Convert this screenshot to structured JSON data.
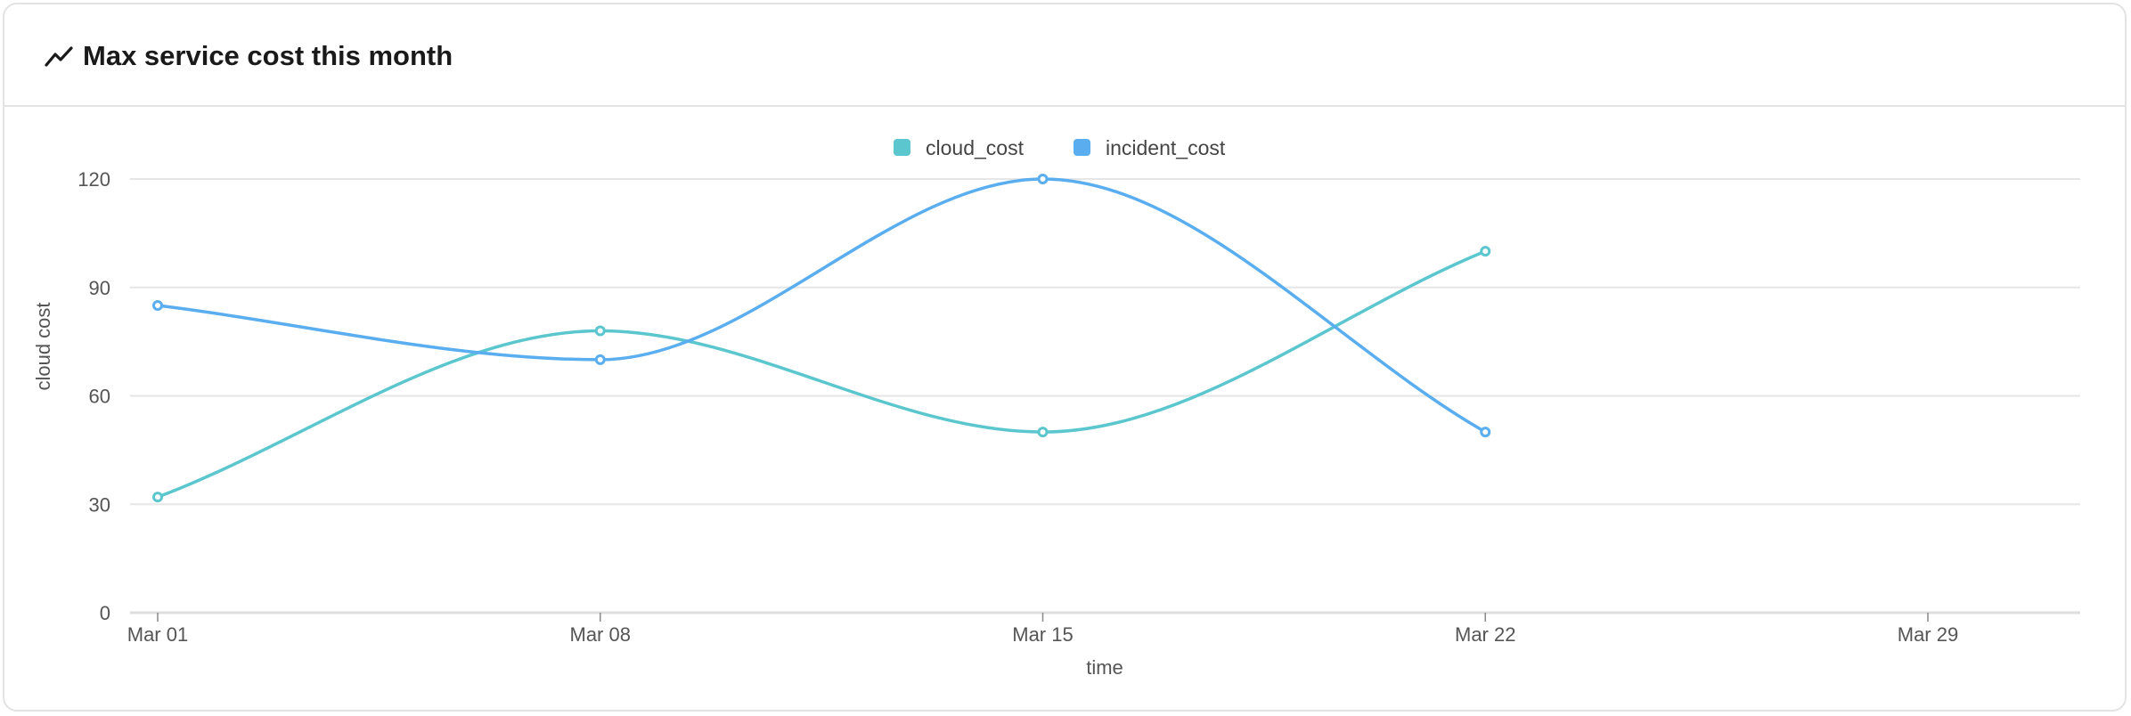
{
  "header": {
    "title": "Max service cost this month",
    "icon": "line-chart-icon"
  },
  "chart_data": {
    "type": "line",
    "title": "",
    "xlabel": "time",
    "ylabel": "cloud cost",
    "x": [
      "Mar 01",
      "Mar 08",
      "Mar 15",
      "Mar 22"
    ],
    "x_ticks": [
      "Mar 01",
      "Mar 08",
      "Mar 15",
      "Mar 22",
      "Mar 29"
    ],
    "y_ticks": [
      0,
      30,
      60,
      90,
      120
    ],
    "ylim": [
      0,
      120
    ],
    "grid": true,
    "legend_position": "top-center",
    "smooth": true,
    "series": [
      {
        "name": "cloud_cost",
        "color": "#5cc6cf",
        "values": [
          32,
          78,
          50,
          100
        ]
      },
      {
        "name": "incident_cost",
        "color": "#5aaeef",
        "values": [
          85,
          70,
          120,
          50
        ]
      }
    ]
  }
}
